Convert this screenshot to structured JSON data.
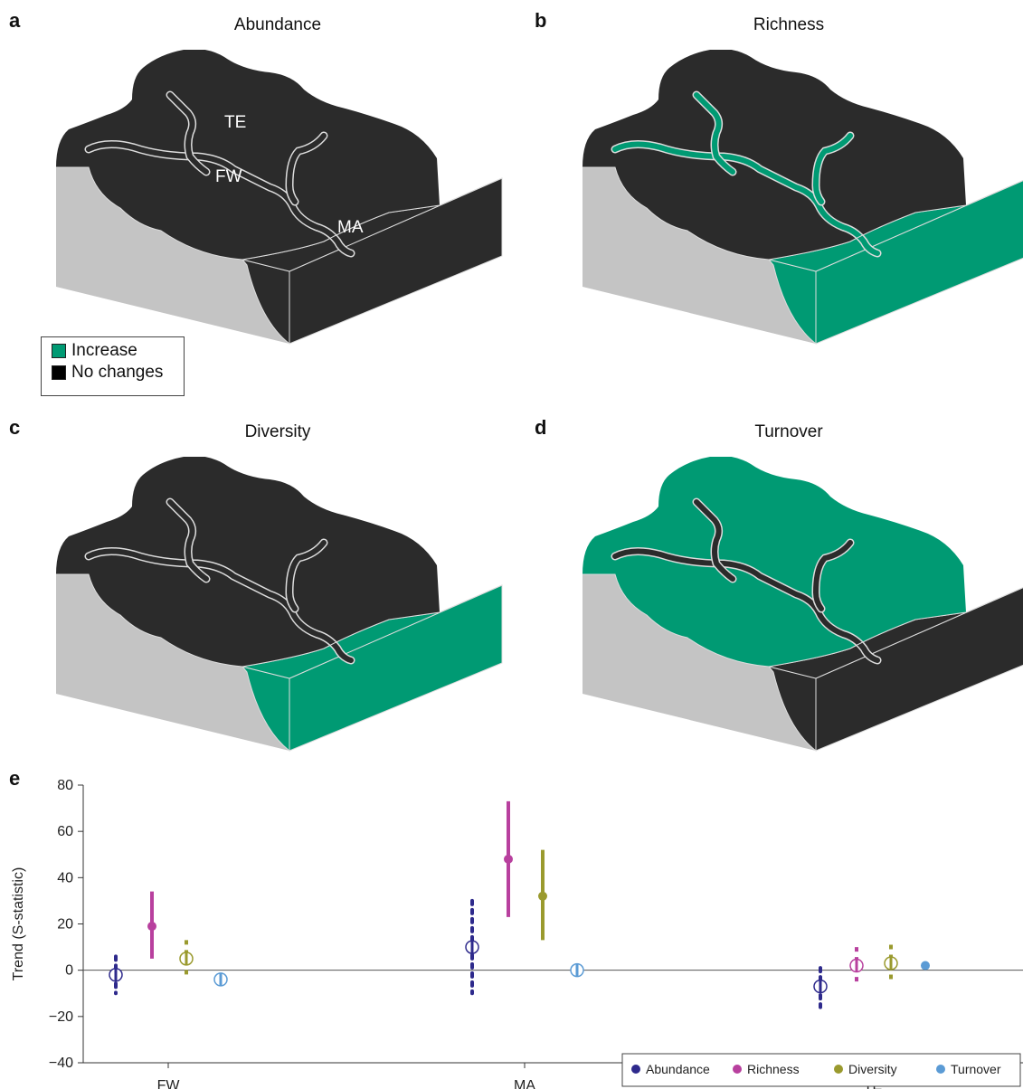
{
  "panels": [
    {
      "letter": "a",
      "title": "Abundance",
      "land_color": "#2b2b2b",
      "fw_color": "#2b2b2b",
      "sea_color": "#2b2b2b",
      "labels": {
        "te": "TE",
        "fw": "FW",
        "ma": "MA"
      }
    },
    {
      "letter": "b",
      "title": "Richness",
      "land_color": "#2b2b2b",
      "fw_color": "#009a73",
      "sea_color": "#009a73"
    },
    {
      "letter": "c",
      "title": "Diversity",
      "land_color": "#2b2b2b",
      "fw_color": "#2b2b2b",
      "sea_color": "#009a73"
    },
    {
      "letter": "d",
      "title": "Turnover",
      "land_color": "#009a73",
      "fw_color": "#2b2b2b",
      "sea_color": "#2b2b2b"
    }
  ],
  "map_legend": {
    "increase_label": "Increase",
    "nochange_label": "No changes",
    "increase_color": "#009a73",
    "nochange_color": "#000000"
  },
  "colors": {
    "increase": "#009a73",
    "no_change": "#2b2b2b",
    "side_grey": "#c4c4c4"
  },
  "chart_data": {
    "panel_letter": "e",
    "type": "scatter",
    "ylabel": "Trend (S-statistic)",
    "ylim": [
      -40,
      80
    ],
    "yticks": [
      80,
      60,
      40,
      20,
      0,
      -20,
      -40
    ],
    "ytick_labels": [
      "80",
      "60",
      "40",
      "20",
      "0",
      "−20",
      "−40"
    ],
    "categories": [
      "FW",
      "MA",
      "TE"
    ],
    "series": [
      {
        "name": "Abundance",
        "color": "#2e2a8c",
        "points": [
          {
            "y": -2,
            "lo": -10,
            "hi": 6,
            "style": "open",
            "bar": "dotted"
          },
          {
            "y": 10,
            "lo": -10,
            "hi": 30,
            "style": "open",
            "bar": "dotted"
          },
          {
            "y": -7,
            "lo": -16,
            "hi": 1,
            "style": "open",
            "bar": "dotted"
          }
        ]
      },
      {
        "name": "Richness",
        "color": "#b8409e",
        "points": [
          {
            "y": 19,
            "lo": 5,
            "hi": 34,
            "style": "filled",
            "bar": "solid"
          },
          {
            "y": 48,
            "lo": 23,
            "hi": 73,
            "style": "filled",
            "bar": "solid"
          },
          {
            "y": 2,
            "lo": -6,
            "hi": 10,
            "style": "open",
            "bar": "dashed"
          }
        ]
      },
      {
        "name": "Diversity",
        "color": "#9a9a2e",
        "points": [
          {
            "y": 5,
            "lo": -3,
            "hi": 13,
            "style": "open",
            "bar": "dashed"
          },
          {
            "y": 32,
            "lo": 13,
            "hi": 52,
            "style": "filled",
            "bar": "solid"
          },
          {
            "y": 3,
            "lo": -5,
            "hi": 11,
            "style": "open",
            "bar": "dashed"
          }
        ]
      },
      {
        "name": "Turnover",
        "color": "#5b9bd5",
        "points": [
          {
            "y": -4,
            "lo": -6,
            "hi": -2,
            "style": "open",
            "bar": "solid"
          },
          {
            "y": 0,
            "lo": -2,
            "hi": 2,
            "style": "open",
            "bar": "solid"
          },
          {
            "y": 2,
            "lo": 1,
            "hi": 3,
            "style": "filled",
            "bar": "solid"
          }
        ]
      }
    ],
    "grid": false,
    "legend_position": "bottom-right"
  }
}
